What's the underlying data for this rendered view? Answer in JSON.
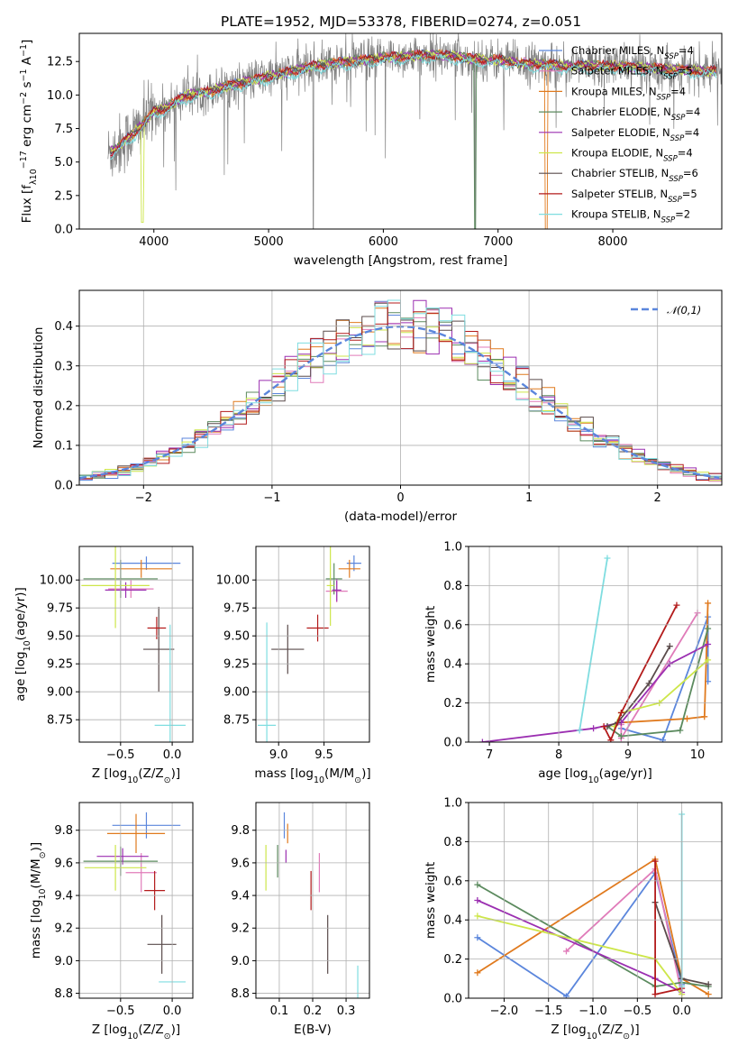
{
  "figure_title": "PLATE=1952, MJD=53378, FIBERID=0274, z=0.051",
  "models": [
    {
      "name": "Chabrier MILES",
      "nssp": "4",
      "color": "#5b86dc"
    },
    {
      "name": "Salpeter MILES",
      "nssp": "5",
      "color": "#e07bb9"
    },
    {
      "name": "Kroupa MILES",
      "nssp": "4",
      "color": "#e07a1e"
    },
    {
      "name": "Chabrier ELODIE",
      "nssp": "4",
      "color": "#5b8a5e"
    },
    {
      "name": "Salpeter ELODIE",
      "nssp": "4",
      "color": "#9b2fb1"
    },
    {
      "name": "Kroupa ELODIE",
      "nssp": "4",
      "color": "#cde64a"
    },
    {
      "name": "Chabrier STELIB",
      "nssp": "6",
      "color": "#5a4b4b"
    },
    {
      "name": "Salpeter STELIB",
      "nssp": "5",
      "color": "#b31b1b"
    },
    {
      "name": "Kroupa STELIB",
      "nssp": "2",
      "color": "#7fdde0"
    }
  ],
  "legend_suffix": {
    "prefix": ", N",
    "sub": "SSP",
    "eq": "="
  },
  "chart_data": [
    {
      "id": "spectrum",
      "type": "line",
      "title": "PLATE=1952, MJD=53378, FIBERID=0274, z=0.051",
      "xlabel": "wavelength [Angstrom, rest frame]",
      "ylabel_parts": [
        "Flux [f",
        "λ",
        "10",
        "−17",
        " erg cm",
        "−2",
        " s",
        "−1",
        " A",
        "−1",
        "]"
      ],
      "xlim": [
        3350,
        8950
      ],
      "ylim": [
        0,
        14.6
      ],
      "xticks": [
        4000,
        5000,
        6000,
        7000,
        8000
      ],
      "yticks": [
        0.0,
        2.5,
        5.0,
        7.5,
        10.0,
        12.5
      ],
      "data_series": {
        "name": "",
        "color": "#808080",
        "x_range": [
          3600,
          8950
        ]
      },
      "model_curve_x": [
        3600,
        3700,
        3800,
        3900,
        4000,
        4100,
        4200,
        4300,
        4400,
        4500,
        4600,
        4800,
        5000,
        5200,
        5400,
        5600,
        5800,
        6000,
        6200,
        6400,
        6600,
        6800,
        7000,
        7200,
        7400,
        7600,
        7800,
        8000,
        8200,
        8400,
        8600,
        8800,
        8950
      ],
      "model_curve_y": [
        5.6,
        6.2,
        7.0,
        7.8,
        8.8,
        9.0,
        9.6,
        10.0,
        10.2,
        10.3,
        10.6,
        11.0,
        11.4,
        11.8,
        12.2,
        12.4,
        12.6,
        12.8,
        12.9,
        13.0,
        12.9,
        12.7,
        12.6,
        12.4,
        12.3,
        12.2,
        12.2,
        12.2,
        12.1,
        12.0,
        11.9,
        11.8,
        11.8
      ],
      "grid": false,
      "legend_position": "upper right"
    },
    {
      "id": "residuals",
      "type": "step",
      "xlabel": "(data-model)/error",
      "ylabel": "Normed distribution",
      "xlim": [
        -2.5,
        2.5
      ],
      "ylim": [
        0,
        0.49
      ],
      "xticks": [
        -2,
        -1,
        0,
        1,
        2
      ],
      "yticks": [
        0.0,
        0.1,
        0.2,
        0.3,
        0.4
      ],
      "bin_width": 0.1,
      "reference_curve": {
        "name": "𝒩(0,1)",
        "type": "normal",
        "mean": 0,
        "sigma": 1,
        "color": "#5b86dc",
        "dashed": true
      },
      "grid": true,
      "legend_position": "upper right"
    },
    {
      "id": "age_vs_Z",
      "type": "errorbar",
      "xlabel_parts": [
        "Z [log",
        "10",
        "(Z/Z",
        "⊙",
        ")]"
      ],
      "ylabel_parts": [
        "age  [log",
        "10",
        "(age/yr)]"
      ],
      "xlim": [
        -0.9,
        0.2
      ],
      "ylim": [
        8.55,
        10.3
      ],
      "xticks": [
        -0.5,
        0.0
      ],
      "yticks": [
        8.75,
        9.0,
        9.25,
        9.5,
        9.75,
        10.0
      ],
      "points": [
        {
          "x": -0.25,
          "y": 10.15,
          "xerr": 0.33,
          "yerr": 0.06
        },
        {
          "x": -0.4,
          "y": 9.92,
          "xerr": 0.22,
          "yerr": 0.08
        },
        {
          "x": -0.3,
          "y": 10.1,
          "xerr": 0.3,
          "yerr": 0.08
        },
        {
          "x": -0.5,
          "y": 10.01,
          "xerr": 0.36,
          "yerr": 0.17
        },
        {
          "x": -0.45,
          "y": 9.91,
          "xerr": 0.2,
          "yerr": 0.07
        },
        {
          "x": -0.55,
          "y": 9.95,
          "xerr": 0.33,
          "yerr": 0.38
        },
        {
          "x": -0.13,
          "y": 9.38,
          "xerr": 0.15,
          "yerr": 0.38
        },
        {
          "x": -0.15,
          "y": 9.57,
          "xerr": 0.09,
          "yerr": 0.1
        },
        {
          "x": -0.02,
          "y": 8.7,
          "xerr": 0.15,
          "yerr": 0.9
        }
      ]
    },
    {
      "id": "age_vs_mass",
      "type": "errorbar",
      "xlabel_parts": [
        "mass [log",
        "10",
        "(M/M",
        "⊙",
        ")]"
      ],
      "ylabel": "",
      "xlim": [
        8.75,
        10.0
      ],
      "ylim": [
        8.55,
        10.3
      ],
      "xticks": [
        9.0,
        9.5
      ],
      "yticks": [
        8.75,
        9.0,
        9.25,
        9.5,
        9.75,
        10.0
      ],
      "points": [
        {
          "x": 9.83,
          "y": 10.15,
          "xerr": 0.08,
          "yerr": 0.07
        },
        {
          "x": 9.64,
          "y": 9.9,
          "xerr": 0.12,
          "yerr": 0.1
        },
        {
          "x": 9.78,
          "y": 10.1,
          "xerr": 0.12,
          "yerr": 0.08
        },
        {
          "x": 9.61,
          "y": 10.01,
          "xerr": 0.09,
          "yerr": 0.14
        },
        {
          "x": 9.64,
          "y": 9.91,
          "xerr": 0.05,
          "yerr": 0.1
        },
        {
          "x": 9.57,
          "y": 9.95,
          "xerr": 0.04,
          "yerr": 0.36
        },
        {
          "x": 9.1,
          "y": 9.38,
          "xerr": 0.18,
          "yerr": 0.22
        },
        {
          "x": 9.43,
          "y": 9.57,
          "xerr": 0.12,
          "yerr": 0.12
        },
        {
          "x": 8.87,
          "y": 8.7,
          "xerr": 0.1,
          "yerr": 0.92
        }
      ]
    },
    {
      "id": "weight_vs_age",
      "type": "line",
      "xlabel_parts": [
        "age  [log",
        "10",
        "(age/yr)]"
      ],
      "ylabel": "mass weight",
      "xlim": [
        6.7,
        10.35
      ],
      "ylim": [
        0,
        1.0
      ],
      "xticks": [
        7,
        8,
        9,
        10
      ],
      "yticks": [
        0.0,
        0.2,
        0.4,
        0.6,
        0.8,
        1.0
      ],
      "series": [
        {
          "x": [
            8.9,
            9.5,
            10.15,
            10.15
          ],
          "y": [
            0.07,
            0.01,
            0.64,
            0.31
          ]
        },
        {
          "x": [
            8.9,
            8.9,
            10.0
          ],
          "y": [
            0.09,
            0.02,
            0.66
          ]
        },
        {
          "x": [
            8.9,
            9.85,
            10.1,
            10.15
          ],
          "y": [
            0.1,
            0.12,
            0.13,
            0.71
          ]
        },
        {
          "x": [
            8.7,
            8.9,
            9.75,
            10.15
          ],
          "y": [
            0.08,
            0.03,
            0.06,
            0.58
          ]
        },
        {
          "x": [
            6.9,
            8.5,
            8.9,
            9.6,
            10.15
          ],
          "y": [
            0.0,
            0.07,
            0.1,
            0.4,
            0.5
          ]
        },
        {
          "x": [
            8.8,
            8.9,
            9.45,
            10.15
          ],
          "y": [
            0.08,
            0.15,
            0.2,
            0.42
          ]
        },
        {
          "x": [
            8.7,
            8.85,
            9.3,
            9.6
          ],
          "y": [
            0.08,
            0.1,
            0.3,
            0.49
          ]
        },
        {
          "x": [
            8.65,
            8.75,
            8.9,
            9.7
          ],
          "y": [
            0.08,
            0.01,
            0.15,
            0.7
          ]
        },
        {
          "x": [
            8.3,
            8.7
          ],
          "y": [
            0.06,
            0.94
          ]
        }
      ],
      "grid": true
    },
    {
      "id": "mass_vs_Z",
      "type": "errorbar",
      "xlabel_parts": [
        "Z [log",
        "10",
        "(Z/Z",
        "⊙",
        ")]"
      ],
      "ylabel_parts": [
        "mass [log",
        "10",
        "(M/M",
        "⊙",
        ")]"
      ],
      "xlim": [
        -0.9,
        0.2
      ],
      "ylim": [
        8.77,
        9.97
      ],
      "xticks": [
        -0.5,
        0.0
      ],
      "yticks": [
        8.8,
        9.0,
        9.2,
        9.4,
        9.6,
        9.8
      ],
      "points": [
        {
          "x": -0.25,
          "y": 9.83,
          "xerr": 0.33,
          "yerr": 0.08
        },
        {
          "x": -0.3,
          "y": 9.54,
          "xerr": 0.15,
          "yerr": 0.12
        },
        {
          "x": -0.35,
          "y": 9.78,
          "xerr": 0.28,
          "yerr": 0.12
        },
        {
          "x": -0.5,
          "y": 9.61,
          "xerr": 0.36,
          "yerr": 0.09
        },
        {
          "x": -0.48,
          "y": 9.64,
          "xerr": 0.25,
          "yerr": 0.05
        },
        {
          "x": -0.55,
          "y": 9.57,
          "xerr": 0.3,
          "yerr": 0.14
        },
        {
          "x": -0.1,
          "y": 9.1,
          "xerr": 0.14,
          "yerr": 0.18
        },
        {
          "x": -0.17,
          "y": 9.43,
          "xerr": 0.1,
          "yerr": 0.12
        },
        {
          "x": 0.0,
          "y": 8.87,
          "xerr": 0.13,
          "yerr": 0.0
        }
      ]
    },
    {
      "id": "mass_vs_ebv",
      "type": "errorbar",
      "xlabel": "E(B-V)",
      "ylabel": "",
      "xlim": [
        0.03,
        0.37
      ],
      "ylim": [
        8.77,
        9.97
      ],
      "xticks": [
        0.1,
        0.2,
        0.3
      ],
      "yticks": [
        8.8,
        9.0,
        9.2,
        9.4,
        9.6,
        9.8
      ],
      "points": [
        {
          "x": 0.115,
          "y": 9.83,
          "xerr": 0.0,
          "yerr": 0.08
        },
        {
          "x": 0.22,
          "y": 9.54,
          "xerr": 0.0,
          "yerr": 0.12
        },
        {
          "x": 0.125,
          "y": 9.78,
          "xerr": 0.0,
          "yerr": 0.06
        },
        {
          "x": 0.095,
          "y": 9.61,
          "xerr": 0.0,
          "yerr": 0.1
        },
        {
          "x": 0.12,
          "y": 9.64,
          "xerr": 0.0,
          "yerr": 0.04
        },
        {
          "x": 0.06,
          "y": 9.57,
          "xerr": 0.0,
          "yerr": 0.14
        },
        {
          "x": 0.245,
          "y": 9.1,
          "xerr": 0.0,
          "yerr": 0.18
        },
        {
          "x": 0.195,
          "y": 9.43,
          "xerr": 0.0,
          "yerr": 0.12
        },
        {
          "x": 0.335,
          "y": 8.87,
          "xerr": 0.0,
          "yerr": 0.1
        }
      ]
    },
    {
      "id": "weight_vs_Z",
      "type": "line",
      "xlabel_parts": [
        "Z [log",
        "10",
        "(Z/Z",
        "⊙",
        ")]"
      ],
      "ylabel": "mass weight",
      "xlim": [
        -2.4,
        0.45
      ],
      "ylim": [
        0,
        1.0
      ],
      "xticks": [
        -2.0,
        -1.5,
        -1.0,
        -0.5,
        0.0
      ],
      "yticks": [
        0.0,
        0.2,
        0.4,
        0.6,
        0.8,
        1.0
      ],
      "series": [
        {
          "x": [
            -2.3,
            -1.3,
            -0.3,
            0.0
          ],
          "y": [
            0.31,
            0.01,
            0.64,
            0.07
          ]
        },
        {
          "x": [
            -1.3,
            -0.3,
            0.0
          ],
          "y": [
            0.24,
            0.66,
            0.02
          ]
        },
        {
          "x": [
            -2.3,
            -0.3,
            0.0,
            0.3
          ],
          "y": [
            0.13,
            0.71,
            0.1,
            0.02
          ]
        },
        {
          "x": [
            -2.3,
            -0.3,
            0.0,
            0.3
          ],
          "y": [
            0.58,
            0.06,
            0.08,
            0.06
          ]
        },
        {
          "x": [
            -2.3,
            -0.3,
            0.0
          ],
          "y": [
            0.5,
            0.1,
            0.03
          ]
        },
        {
          "x": [
            -2.3,
            -0.3,
            0.0
          ],
          "y": [
            0.42,
            0.2,
            0.02
          ]
        },
        {
          "x": [
            -0.3,
            0.0,
            0.3
          ],
          "y": [
            0.49,
            0.1,
            0.07
          ]
        },
        {
          "x": [
            -0.3,
            -0.3,
            0.0
          ],
          "y": [
            0.7,
            0.02,
            0.05
          ]
        },
        {
          "x": [
            0.0,
            0.0
          ],
          "y": [
            0.06,
            0.94
          ]
        }
      ],
      "grid": true
    }
  ]
}
